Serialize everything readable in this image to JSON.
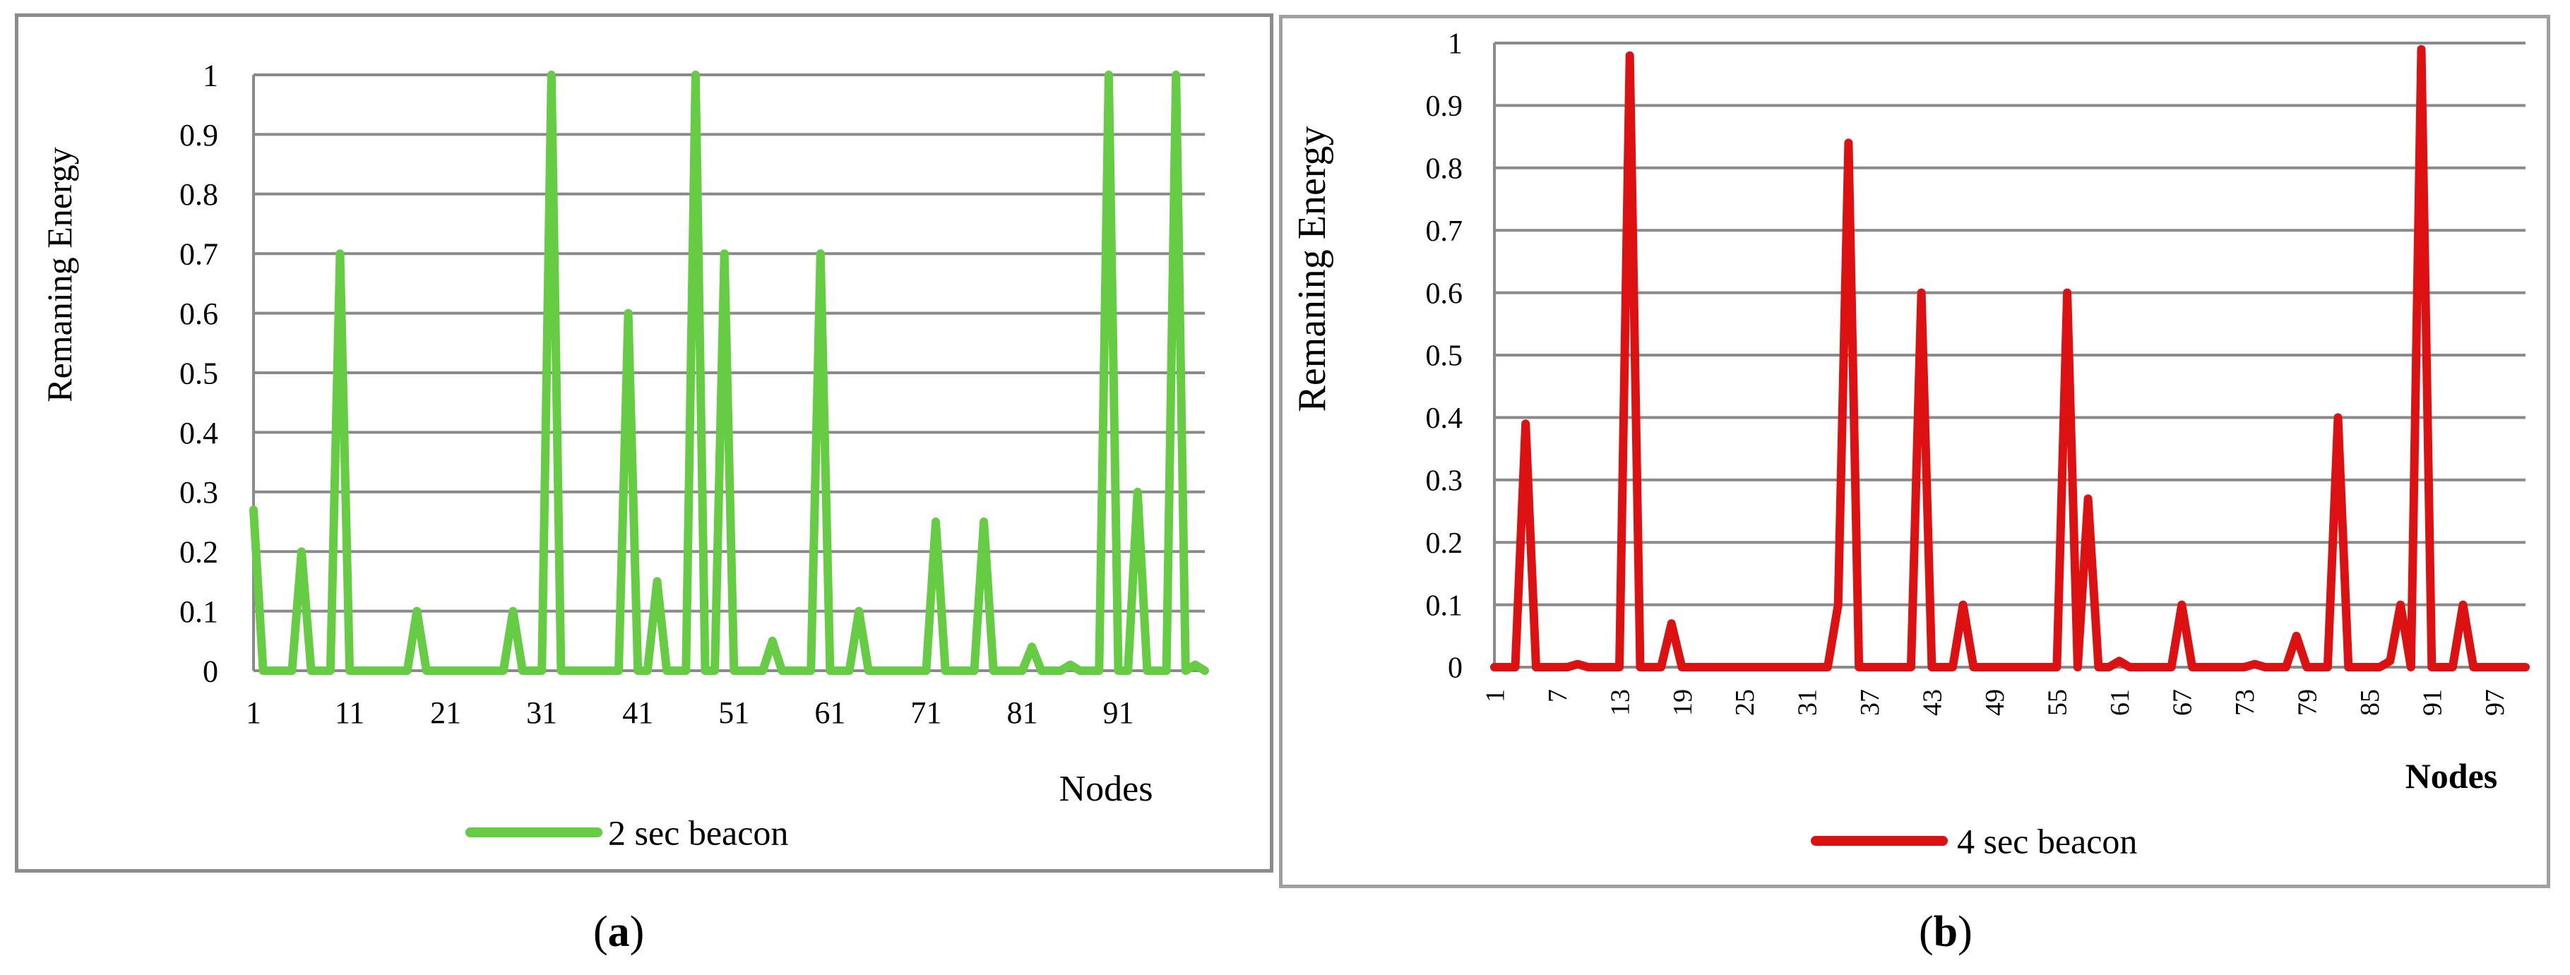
{
  "captions": {
    "a": "a",
    "b": "b"
  },
  "chart_data": [
    {
      "type": "line",
      "panel": "a",
      "ylabel": "Remaning Energy",
      "xlabel": "Nodes",
      "ylim": [
        0,
        1
      ],
      "yticks": [
        0,
        0.1,
        0.2,
        0.3,
        0.4,
        0.5,
        0.6,
        0.7,
        0.8,
        0.9,
        1
      ],
      "ytick_labels": [
        "0",
        "0.1",
        "0.2",
        "0.3",
        "0.4",
        "0.5",
        "0.6",
        "0.7",
        "0.8",
        "0.9",
        "1"
      ],
      "xticks": [
        1,
        11,
        21,
        31,
        41,
        51,
        61,
        71,
        81,
        91
      ],
      "xtick_labels": [
        "1",
        "11",
        "21",
        "31",
        "41",
        "51",
        "61",
        "71",
        "81",
        "91"
      ],
      "xlim": [
        1,
        100
      ],
      "grid": true,
      "legend_position": "bottom",
      "series": [
        {
          "name": "2 sec beacon",
          "color": "#66cc44",
          "x": [
            1,
            2,
            3,
            4,
            5,
            6,
            7,
            8,
            9,
            10,
            11,
            12,
            13,
            14,
            15,
            16,
            17,
            18,
            19,
            20,
            21,
            22,
            23,
            24,
            25,
            26,
            27,
            28,
            29,
            30,
            31,
            32,
            33,
            34,
            35,
            36,
            37,
            38,
            39,
            40,
            41,
            42,
            43,
            44,
            45,
            46,
            47,
            48,
            49,
            50,
            51,
            52,
            53,
            54,
            55,
            56,
            57,
            58,
            59,
            60,
            61,
            62,
            63,
            64,
            65,
            66,
            67,
            68,
            69,
            70,
            71,
            72,
            73,
            74,
            75,
            76,
            77,
            78,
            79,
            80,
            81,
            82,
            83,
            84,
            85,
            86,
            87,
            88,
            89,
            90,
            91,
            92,
            93,
            94,
            95,
            96,
            97,
            98,
            99,
            100
          ],
          "values": [
            0.27,
            0,
            0,
            0,
            0,
            0.2,
            0,
            0,
            0,
            0.7,
            0,
            0,
            0,
            0,
            0,
            0,
            0,
            0.1,
            0,
            0,
            0,
            0,
            0,
            0,
            0,
            0,
            0,
            0.1,
            0,
            0,
            0,
            1,
            0,
            0,
            0,
            0,
            0,
            0,
            0,
            0.6,
            0,
            0,
            0.15,
            0,
            0,
            0,
            1,
            0,
            0,
            0.7,
            0,
            0,
            0,
            0,
            0.05,
            0,
            0,
            0,
            0,
            0.7,
            0,
            0,
            0,
            0.1,
            0,
            0,
            0,
            0,
            0,
            0,
            0,
            0.25,
            0,
            0,
            0,
            0,
            0.25,
            0,
            0,
            0,
            0,
            0.04,
            0,
            0,
            0,
            0.01,
            0,
            0,
            0,
            1,
            0,
            0,
            0.3,
            0,
            0,
            0,
            1,
            0,
            0.01,
            0
          ]
        }
      ]
    },
    {
      "type": "line",
      "panel": "b",
      "ylabel": "Remaning Energy",
      "xlabel": "Nodes",
      "ylim": [
        0,
        1
      ],
      "yticks": [
        0,
        0.1,
        0.2,
        0.3,
        0.4,
        0.5,
        0.6,
        0.7,
        0.8,
        0.9,
        1
      ],
      "ytick_labels": [
        "0",
        "0.1",
        "0.2",
        "0.3",
        "0.4",
        "0.5",
        "0.6",
        "0.7",
        "0.8",
        "0.9",
        "1"
      ],
      "xticks": [
        1,
        4,
        7,
        10,
        13,
        16,
        19,
        22,
        25,
        28,
        31,
        34,
        37,
        40,
        43,
        46,
        49,
        52,
        55,
        58,
        61,
        64,
        67,
        70,
        73,
        76,
        79,
        82,
        85,
        88,
        91,
        94,
        97,
        100
      ],
      "xtick_labels": [
        "1",
        "",
        "7",
        "",
        "13",
        "",
        "19",
        "",
        "25",
        "",
        "31",
        "",
        "37",
        "",
        "43",
        "",
        "49",
        "",
        "55",
        "",
        "61",
        "",
        "67",
        "",
        "73",
        "",
        "79",
        "",
        "85",
        "",
        "91",
        "",
        "97",
        ""
      ],
      "xlim": [
        1,
        100
      ],
      "grid": true,
      "legend_position": "bottom",
      "series": [
        {
          "name": "4 sec beacon",
          "color": "#dd1111",
          "x": [
            1,
            2,
            3,
            4,
            5,
            6,
            7,
            8,
            9,
            10,
            11,
            12,
            13,
            14,
            15,
            16,
            17,
            18,
            19,
            20,
            21,
            22,
            23,
            24,
            25,
            26,
            27,
            28,
            29,
            30,
            31,
            32,
            33,
            34,
            35,
            36,
            37,
            38,
            39,
            40,
            41,
            42,
            43,
            44,
            45,
            46,
            47,
            48,
            49,
            50,
            51,
            52,
            53,
            54,
            55,
            56,
            57,
            58,
            59,
            60,
            61,
            62,
            63,
            64,
            65,
            66,
            67,
            68,
            69,
            70,
            71,
            72,
            73,
            74,
            75,
            76,
            77,
            78,
            79,
            80,
            81,
            82,
            83,
            84,
            85,
            86,
            87,
            88,
            89,
            90,
            91,
            92,
            93,
            94,
            95,
            96,
            97,
            98,
            99,
            100
          ],
          "values": [
            0,
            0,
            0,
            0.39,
            0,
            0,
            0,
            0,
            0.005,
            0,
            0,
            0,
            0,
            0.98,
            0,
            0,
            0,
            0.07,
            0,
            0,
            0,
            0,
            0,
            0,
            0,
            0,
            0,
            0,
            0,
            0,
            0,
            0,
            0,
            0.1,
            0.84,
            0,
            0,
            0,
            0,
            0,
            0,
            0.6,
            0,
            0,
            0,
            0.1,
            0,
            0,
            0,
            0,
            0,
            0,
            0,
            0,
            0,
            0.6,
            0,
            0.27,
            0,
            0,
            0.01,
            0,
            0,
            0,
            0,
            0,
            0.1,
            0,
            0,
            0,
            0,
            0,
            0,
            0.005,
            0,
            0,
            0,
            0.05,
            0,
            0,
            0,
            0.4,
            0,
            0,
            0,
            0,
            0.01,
            0.1,
            0,
            0.99,
            0,
            0,
            0,
            0.1,
            0,
            0,
            0,
            0,
            0,
            0
          ]
        }
      ]
    }
  ]
}
